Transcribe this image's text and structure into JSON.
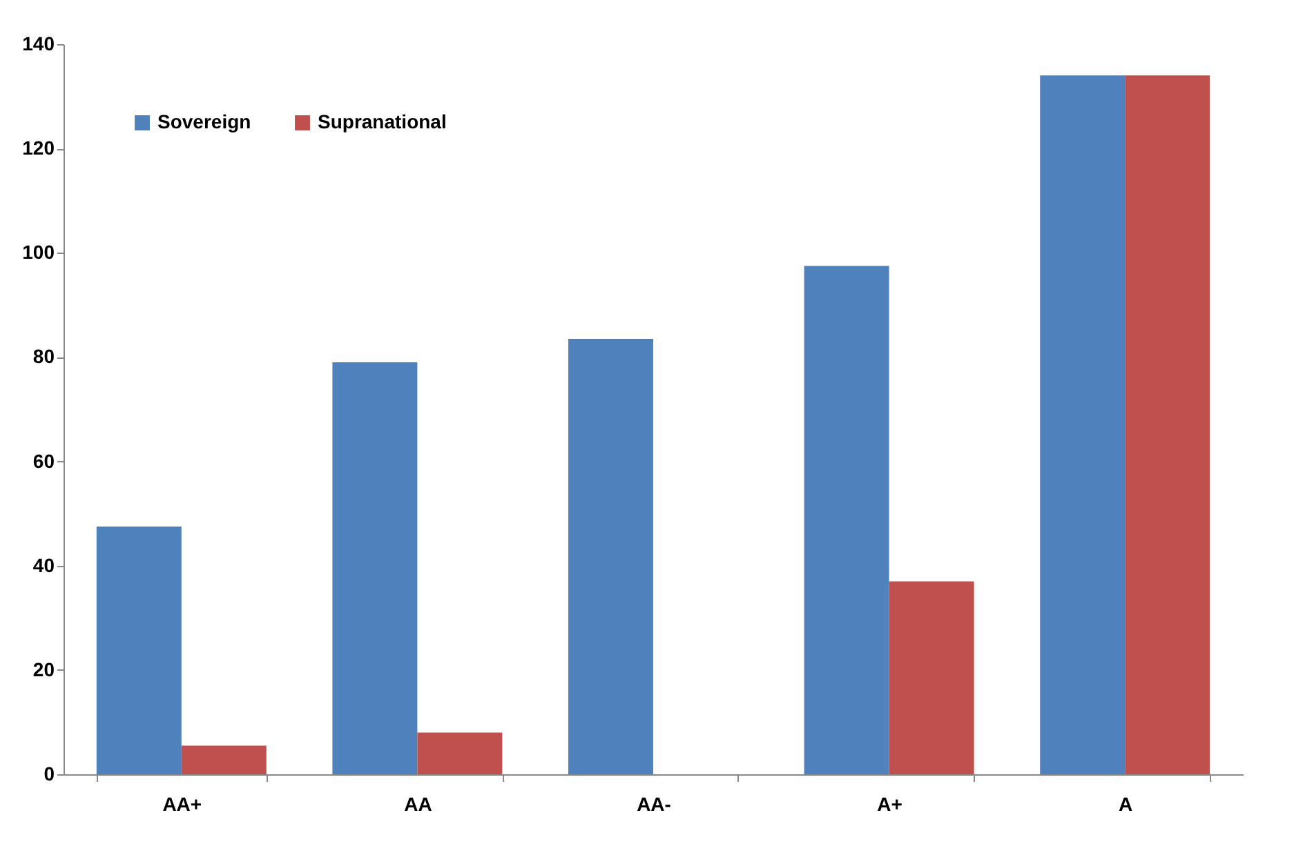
{
  "chart_data": {
    "type": "bar",
    "categories": [
      "AA+",
      "AA",
      "AA-",
      "A+",
      "A"
    ],
    "series": [
      {
        "name": "Sovereign",
        "color": "#4f81bd",
        "values": [
          47.5,
          79,
          83.5,
          97.5,
          134
        ]
      },
      {
        "name": "Supranational",
        "color": "#c0504d",
        "values": [
          5.5,
          8,
          0,
          37,
          134
        ]
      }
    ],
    "ylim": [
      0,
      140
    ],
    "yticks": [
      0,
      20,
      40,
      60,
      80,
      100,
      120,
      140
    ],
    "grid": false,
    "legend": "top left"
  }
}
